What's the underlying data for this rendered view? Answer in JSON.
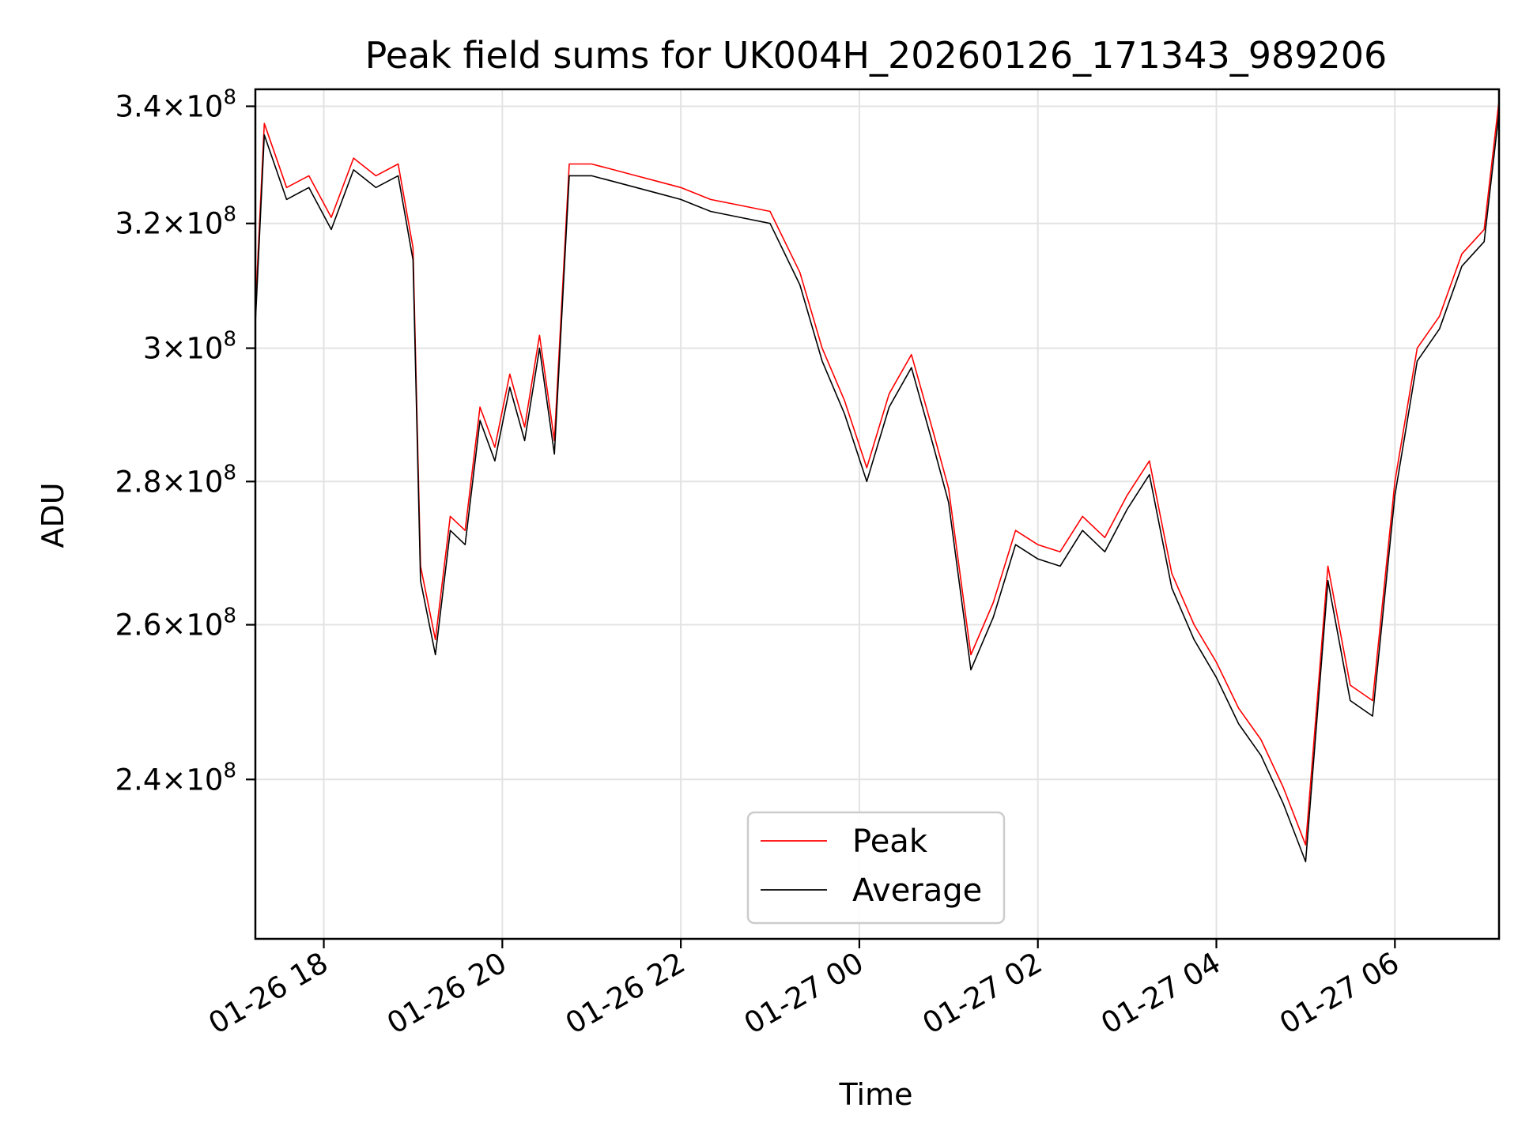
{
  "chart_data": {
    "type": "line",
    "title": "Peak field sums for UK004H_20260126_171343_989206",
    "xlabel": "Time",
    "ylabel": "ADU",
    "y_scale": "log",
    "ylim": [
      221000000,
      343000000
    ],
    "xlim": [
      "2026-01-26 17:14",
      "2026-01-27 07:10"
    ],
    "grid": true,
    "legend_position": "bottom-center",
    "x_ticks": [
      {
        "time": "2026-01-26 18:00",
        "label": "01-26 18"
      },
      {
        "time": "2026-01-26 20:00",
        "label": "01-26 20"
      },
      {
        "time": "2026-01-26 22:00",
        "label": "01-26 22"
      },
      {
        "time": "2026-01-27 00:00",
        "label": "01-27 00"
      },
      {
        "time": "2026-01-27 02:00",
        "label": "01-27 02"
      },
      {
        "time": "2026-01-27 04:00",
        "label": "01-27 04"
      },
      {
        "time": "2026-01-27 06:00",
        "label": "01-27 06"
      }
    ],
    "y_ticks": [
      {
        "value": 240000000,
        "mantissa": "2.4",
        "exponent": "8"
      },
      {
        "value": 260000000,
        "mantissa": "2.6",
        "exponent": "8"
      },
      {
        "value": 280000000,
        "mantissa": "2.8",
        "exponent": "8"
      },
      {
        "value": 300000000,
        "mantissa": "3",
        "exponent": "8"
      },
      {
        "value": 320000000,
        "mantissa": "3.2",
        "exponent": "8"
      },
      {
        "value": 340000000,
        "mantissa": "3.4",
        "exponent": "8"
      }
    ],
    "series": [
      {
        "name": "Peak",
        "color": "#ff0000",
        "x": [
          "2026-01-26 17:14",
          "2026-01-26 17:20",
          "2026-01-26 17:35",
          "2026-01-26 17:50",
          "2026-01-26 18:05",
          "2026-01-26 18:20",
          "2026-01-26 18:35",
          "2026-01-26 18:50",
          "2026-01-26 19:00",
          "2026-01-26 19:05",
          "2026-01-26 19:15",
          "2026-01-26 19:25",
          "2026-01-26 19:35",
          "2026-01-26 19:45",
          "2026-01-26 19:55",
          "2026-01-26 20:05",
          "2026-01-26 20:15",
          "2026-01-26 20:25",
          "2026-01-26 20:35",
          "2026-01-26 20:45",
          "2026-01-26 21:00",
          "2026-01-26 21:15",
          "2026-01-26 21:30",
          "2026-01-26 21:45",
          "2026-01-26 22:00",
          "2026-01-26 22:20",
          "2026-01-26 22:40",
          "2026-01-26 23:00",
          "2026-01-26 23:20",
          "2026-01-26 23:35",
          "2026-01-26 23:50",
          "2026-01-27 00:05",
          "2026-01-27 00:20",
          "2026-01-27 00:35",
          "2026-01-27 00:50",
          "2026-01-27 01:00",
          "2026-01-27 01:15",
          "2026-01-27 01:30",
          "2026-01-27 01:45",
          "2026-01-27 02:00",
          "2026-01-27 02:15",
          "2026-01-27 02:30",
          "2026-01-27 02:45",
          "2026-01-27 03:00",
          "2026-01-27 03:15",
          "2026-01-27 03:30",
          "2026-01-27 03:45",
          "2026-01-27 04:00",
          "2026-01-27 04:15",
          "2026-01-27 04:30",
          "2026-01-27 04:45",
          "2026-01-27 05:00",
          "2026-01-27 05:15",
          "2026-01-27 05:30",
          "2026-01-27 05:45",
          "2026-01-27 06:00",
          "2026-01-27 06:15",
          "2026-01-27 06:30",
          "2026-01-27 06:45",
          "2026-01-27 07:00",
          "2026-01-27 07:10"
        ],
        "values": [
          306000000,
          337000000,
          326000000,
          328000000,
          321000000,
          331000000,
          328000000,
          330000000,
          316000000,
          268000000,
          258000000,
          275000000,
          273000000,
          291000000,
          285000000,
          296000000,
          288000000,
          302000000,
          286000000,
          330000000,
          330000000,
          329000000,
          328000000,
          327000000,
          326000000,
          324000000,
          323000000,
          322000000,
          312000000,
          300000000,
          292000000,
          282000000,
          293000000,
          299000000,
          287000000,
          279000000,
          256000000,
          263000000,
          273000000,
          271000000,
          270000000,
          275000000,
          272000000,
          278000000,
          283000000,
          267000000,
          260000000,
          255000000,
          249000000,
          245000000,
          239000000,
          232000000,
          268000000,
          252000000,
          250000000,
          280000000,
          300000000,
          305000000,
          315000000,
          319000000,
          341000000
        ]
      },
      {
        "name": "Average",
        "color": "#000000",
        "x": [
          "2026-01-26 17:14",
          "2026-01-26 17:20",
          "2026-01-26 17:35",
          "2026-01-26 17:50",
          "2026-01-26 18:05",
          "2026-01-26 18:20",
          "2026-01-26 18:35",
          "2026-01-26 18:50",
          "2026-01-26 19:00",
          "2026-01-26 19:05",
          "2026-01-26 19:15",
          "2026-01-26 19:25",
          "2026-01-26 19:35",
          "2026-01-26 19:45",
          "2026-01-26 19:55",
          "2026-01-26 20:05",
          "2026-01-26 20:15",
          "2026-01-26 20:25",
          "2026-01-26 20:35",
          "2026-01-26 20:45",
          "2026-01-26 21:00",
          "2026-01-26 21:15",
          "2026-01-26 21:30",
          "2026-01-26 21:45",
          "2026-01-26 22:00",
          "2026-01-26 22:20",
          "2026-01-26 22:40",
          "2026-01-26 23:00",
          "2026-01-26 23:20",
          "2026-01-26 23:35",
          "2026-01-26 23:50",
          "2026-01-27 00:05",
          "2026-01-27 00:20",
          "2026-01-27 00:35",
          "2026-01-27 00:50",
          "2026-01-27 01:00",
          "2026-01-27 01:15",
          "2026-01-27 01:30",
          "2026-01-27 01:45",
          "2026-01-27 02:00",
          "2026-01-27 02:15",
          "2026-01-27 02:30",
          "2026-01-27 02:45",
          "2026-01-27 03:00",
          "2026-01-27 03:15",
          "2026-01-27 03:30",
          "2026-01-27 03:45",
          "2026-01-27 04:00",
          "2026-01-27 04:15",
          "2026-01-27 04:30",
          "2026-01-27 04:45",
          "2026-01-27 05:00",
          "2026-01-27 05:15",
          "2026-01-27 05:30",
          "2026-01-27 05:45",
          "2026-01-27 06:00",
          "2026-01-27 06:15",
          "2026-01-27 06:30",
          "2026-01-27 06:45",
          "2026-01-27 07:00",
          "2026-01-27 07:10"
        ],
        "values": [
          304000000,
          335000000,
          324000000,
          326000000,
          319000000,
          329000000,
          326000000,
          328000000,
          314000000,
          266000000,
          256000000,
          273000000,
          271000000,
          289000000,
          283000000,
          294000000,
          286000000,
          300000000,
          284000000,
          328000000,
          328000000,
          327000000,
          326000000,
          325000000,
          324000000,
          322000000,
          321000000,
          320000000,
          310000000,
          298000000,
          290000000,
          280000000,
          291000000,
          297000000,
          285000000,
          277000000,
          254000000,
          261000000,
          271000000,
          269000000,
          268000000,
          273000000,
          270000000,
          276000000,
          281000000,
          265000000,
          258000000,
          253000000,
          247000000,
          243000000,
          237000000,
          230000000,
          266000000,
          250000000,
          248000000,
          278000000,
          298000000,
          303000000,
          313000000,
          317000000,
          339000000
        ]
      }
    ]
  }
}
